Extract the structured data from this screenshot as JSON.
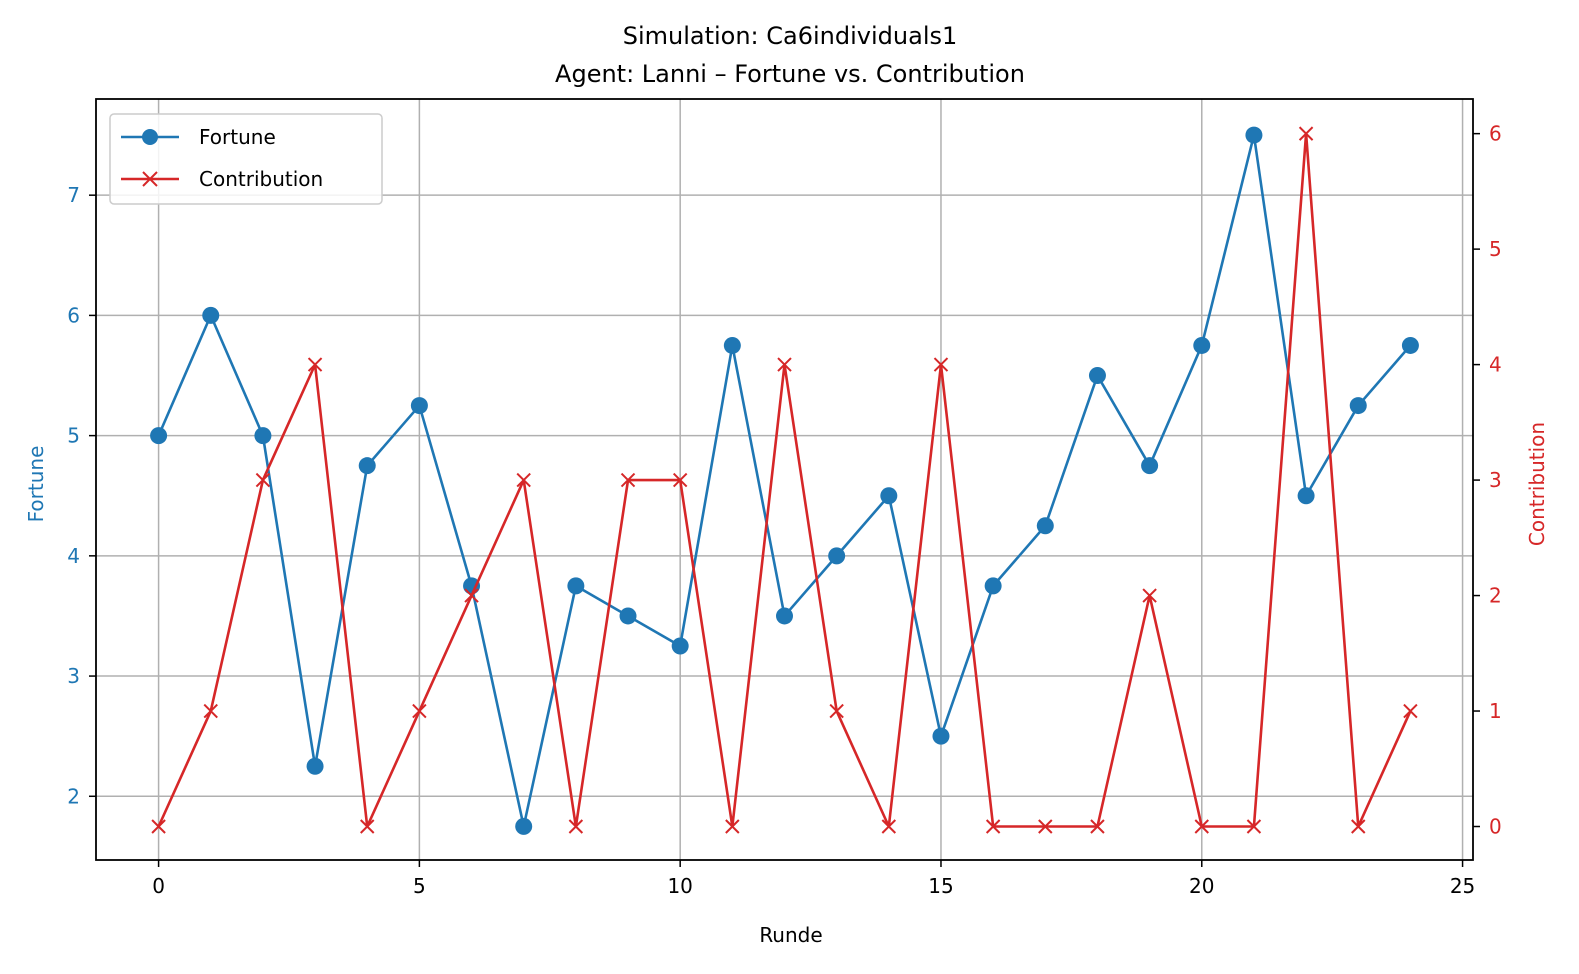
{
  "chart_data": {
    "type": "line",
    "title": "Simulation: Ca6individuals1",
    "subtitle": "Agent: Lanni – Fortune vs. Contribution",
    "xlabel": "Runde",
    "ylabel_left": "Fortune",
    "ylabel_right": "Contribution",
    "xlim": [
      -1.2,
      25.2
    ],
    "ylim_left": [
      1.47,
      7.8
    ],
    "ylim_right": [
      -0.29,
      6.3
    ],
    "xticks": [
      0,
      5,
      10,
      15,
      20,
      25
    ],
    "yticks_left": [
      2,
      3,
      4,
      5,
      6,
      7
    ],
    "yticks_right": [
      0,
      1,
      2,
      3,
      4,
      5,
      6
    ],
    "grid": true,
    "legend_position": "top-left",
    "x": [
      0,
      1,
      2,
      3,
      4,
      5,
      6,
      7,
      8,
      9,
      10,
      11,
      12,
      13,
      14,
      15,
      16,
      17,
      18,
      19,
      20,
      21,
      22,
      23,
      24
    ],
    "series": [
      {
        "name": "Fortune",
        "axis": "left",
        "color": "#1f77b4",
        "marker": "circle",
        "values": [
          5,
          6,
          5,
          2.25,
          4.75,
          5.25,
          3.75,
          1.75,
          3.75,
          3.5,
          3.25,
          5.75,
          3.5,
          4,
          4.5,
          2.5,
          3.75,
          4.25,
          5.5,
          4.75,
          5.75,
          7.5,
          4.5,
          5.25,
          5.75
        ]
      },
      {
        "name": "Contribution",
        "axis": "right",
        "color": "#d62728",
        "marker": "x",
        "values": [
          0,
          1,
          3,
          4,
          0,
          1,
          2,
          3,
          0,
          3,
          3,
          0,
          4,
          1,
          0,
          4,
          0,
          0,
          0,
          2,
          0,
          0,
          6,
          0,
          1
        ]
      }
    ]
  }
}
